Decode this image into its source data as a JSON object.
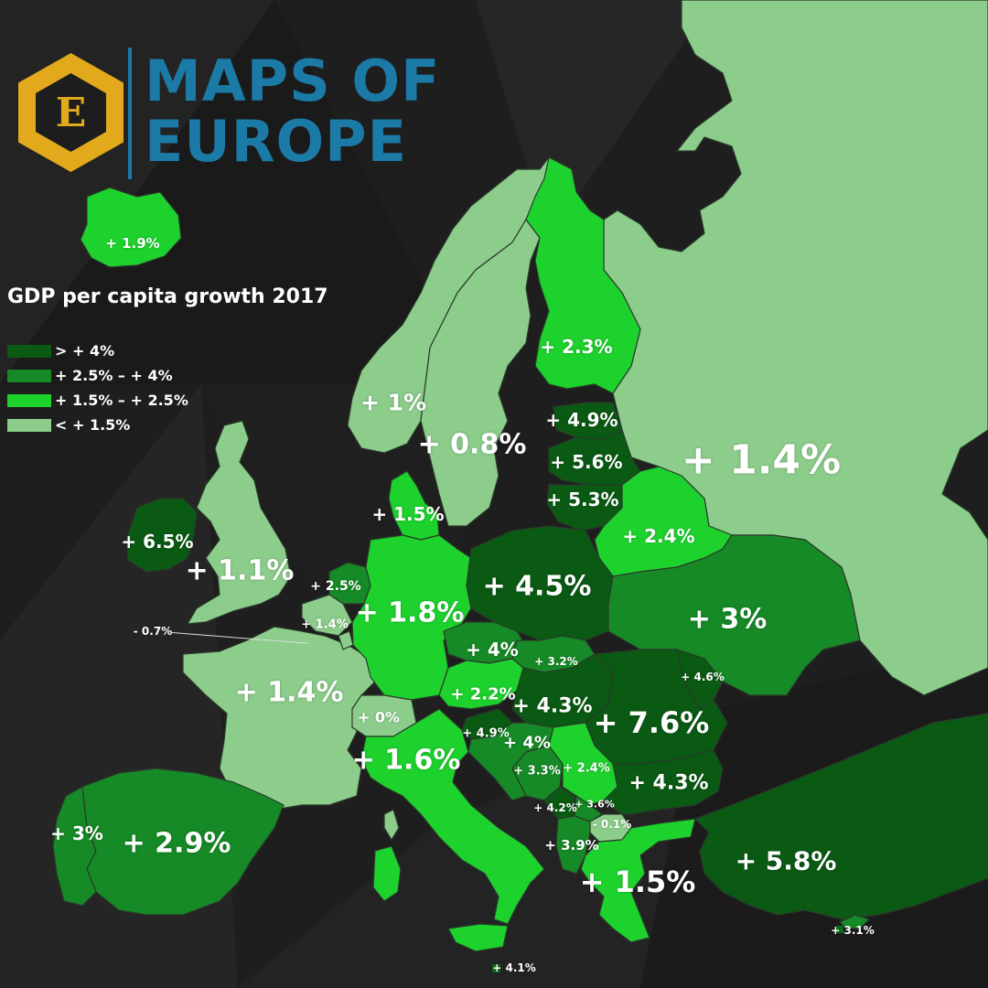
{
  "logo": {
    "emblem_letter": "E",
    "title_line1": "MAPS OF",
    "title_line2": "EUROPE",
    "colors": {
      "hex_outer": "#e2a91c",
      "hex_inner": "#1d1d1d",
      "text": "#1b7aa6"
    }
  },
  "map_title": "GDP per capita growth 2017",
  "legend": [
    {
      "label": "> + 4%",
      "color": "#0a5a14"
    },
    {
      "label": "+ 2.5% – + 4%",
      "color": "#168a26"
    },
    {
      "label": "+ 1.5% – + 2.5%",
      "color": "#1ed22e"
    },
    {
      "label": "< + 1.5%",
      "color": "#8ccd8c"
    }
  ],
  "countries": [
    {
      "name": "Iceland",
      "label": "+ 1.9%",
      "value": 1.9,
      "class": "1.5-2.5"
    },
    {
      "name": "Ireland",
      "label": "+ 6.5%",
      "value": 6.5,
      "class": ">4"
    },
    {
      "name": "United Kingdom",
      "label": "+ 1.1%",
      "value": 1.1,
      "class": "<1.5"
    },
    {
      "name": "Norway",
      "label": "+ 1%",
      "value": 1.0,
      "class": "<1.5"
    },
    {
      "name": "Sweden",
      "label": "+ 0.8%",
      "value": 0.8,
      "class": "<1.5"
    },
    {
      "name": "Finland",
      "label": "+ 2.3%",
      "value": 2.3,
      "class": "1.5-2.5"
    },
    {
      "name": "Estonia",
      "label": "+ 4.9%",
      "value": 4.9,
      "class": ">4"
    },
    {
      "name": "Latvia",
      "label": "+ 5.6%",
      "value": 5.6,
      "class": ">4"
    },
    {
      "name": "Lithuania",
      "label": "+ 5.3%",
      "value": 5.3,
      "class": ">4"
    },
    {
      "name": "Russia",
      "label": "+ 1.4%",
      "value": 1.4,
      "class": "<1.5"
    },
    {
      "name": "Denmark",
      "label": "+ 1.5%",
      "value": 1.5,
      "class": "1.5-2.5"
    },
    {
      "name": "Belarus",
      "label": "+ 2.4%",
      "value": 2.4,
      "class": "1.5-2.5"
    },
    {
      "name": "Netherlands",
      "label": "+ 2.5%",
      "value": 2.5,
      "class": "2.5-4"
    },
    {
      "name": "Belgium",
      "label": "+ 1.4%",
      "value": 1.4,
      "class": "<1.5"
    },
    {
      "name": "Luxembourg",
      "label": "- 0.7%",
      "value": -0.7,
      "class": "<1.5"
    },
    {
      "name": "Germany",
      "label": "+ 1.8%",
      "value": 1.8,
      "class": "1.5-2.5"
    },
    {
      "name": "Poland",
      "label": "+ 4.5%",
      "value": 4.5,
      "class": ">4"
    },
    {
      "name": "Ukraine",
      "label": "+ 3%",
      "value": 3.0,
      "class": "2.5-4"
    },
    {
      "name": "Czech Republic",
      "label": "+ 4%",
      "value": 4.0,
      "class": "2.5-4"
    },
    {
      "name": "Slovakia",
      "label": "+ 3.2%",
      "value": 3.2,
      "class": "2.5-4"
    },
    {
      "name": "Moldova",
      "label": "+ 4.6%",
      "value": 4.6,
      "class": ">4"
    },
    {
      "name": "France",
      "label": "+ 1.4%",
      "value": 1.4,
      "class": "<1.5"
    },
    {
      "name": "Austria",
      "label": "+ 2.2%",
      "value": 2.2,
      "class": "1.5-2.5"
    },
    {
      "name": "Hungary",
      "label": "+ 4.3%",
      "value": 4.3,
      "class": ">4"
    },
    {
      "name": "Romania",
      "label": "+ 7.6%",
      "value": 7.6,
      "class": ">4"
    },
    {
      "name": "Switzerland",
      "label": "+ 0%",
      "value": 0.0,
      "class": "<1.5"
    },
    {
      "name": "Slovenia",
      "label": "+ 4.9%",
      "value": 4.9,
      "class": ">4"
    },
    {
      "name": "Croatia",
      "label": "+ 4%",
      "value": 4.0,
      "class": "2.5-4"
    },
    {
      "name": "Italy",
      "label": "+ 1.6%",
      "value": 1.6,
      "class": "1.5-2.5"
    },
    {
      "name": "Bosnia and Herzegovina",
      "label": "+ 3.3%",
      "value": 3.3,
      "class": "2.5-4"
    },
    {
      "name": "Serbia",
      "label": "+ 2.4%",
      "value": 2.4,
      "class": "1.5-2.5"
    },
    {
      "name": "Bulgaria",
      "label": "+ 4.3%",
      "value": 4.3,
      "class": ">4"
    },
    {
      "name": "Montenegro",
      "label": "+ 4.2%",
      "value": 4.2,
      "class": ">4"
    },
    {
      "name": "Kosovo",
      "label": "+ 3.6%",
      "value": 3.6,
      "class": "2.5-4"
    },
    {
      "name": "North Macedonia",
      "label": "- 0.1%",
      "value": -0.1,
      "class": "<1.5"
    },
    {
      "name": "Albania",
      "label": "+ 3.9%",
      "value": 3.9,
      "class": "2.5-4"
    },
    {
      "name": "Greece",
      "label": "+ 1.5%",
      "value": 1.5,
      "class": "1.5-2.5"
    },
    {
      "name": "Turkey",
      "label": "+ 5.8%",
      "value": 5.8,
      "class": ">4"
    },
    {
      "name": "Cyprus",
      "label": "+ 3.1%",
      "value": 3.1,
      "class": "2.5-4"
    },
    {
      "name": "Malta",
      "label": "+ 4.1%",
      "value": 4.1,
      "class": ">4"
    },
    {
      "name": "Portugal",
      "label": "+ 3%",
      "value": 3.0,
      "class": "2.5-4"
    },
    {
      "name": "Spain",
      "label": "+ 2.9%",
      "value": 2.9,
      "class": "2.5-4"
    }
  ]
}
